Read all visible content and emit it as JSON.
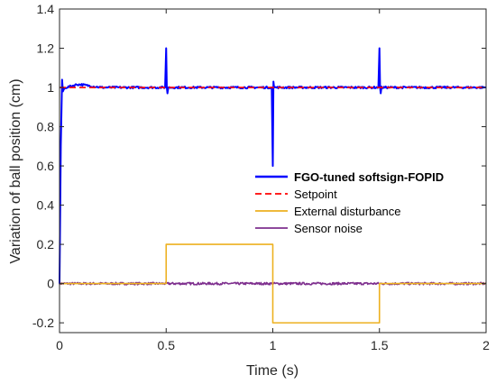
{
  "chart_data": {
    "type": "line",
    "xlabel": "Time (s)",
    "ylabel": "Variation of ball position (cm)",
    "xlim": [
      0,
      2
    ],
    "ylim": [
      -0.25,
      1.4
    ],
    "xticks": [
      0,
      0.5,
      1,
      1.5,
      2
    ],
    "xtick_labels": [
      "0",
      "0.5",
      "1",
      "1.5",
      "2"
    ],
    "yticks": [
      -0.2,
      0,
      0.2,
      0.4,
      0.6,
      0.8,
      1,
      1.2,
      1.4
    ],
    "ytick_labels": [
      "-0.2",
      "0",
      "0.2",
      "0.4",
      "0.6",
      "0.8",
      "1",
      "1.2",
      "1.4"
    ],
    "grid": false,
    "legend_position": "center-right",
    "series": [
      {
        "name": "FGO-tuned softsign-FOPID",
        "color": "#0000ff",
        "style": "solid",
        "legend_bold": true,
        "x": [
          0,
          0.006,
          0.012,
          0.016,
          0.02,
          0.03,
          0.05,
          0.08,
          0.1,
          0.13,
          0.16,
          0.2,
          0.3,
          0.4,
          0.495,
          0.5,
          0.503,
          0.506,
          0.51,
          0.6,
          0.7,
          0.8,
          0.9,
          0.995,
          1.0,
          1.003,
          1.006,
          1.01,
          1.1,
          1.2,
          1.3,
          1.4,
          1.495,
          1.5,
          1.503,
          1.506,
          1.51,
          1.6,
          1.7,
          1.8,
          1.9,
          2.0
        ],
        "y": [
          0,
          0.7,
          1.04,
          0.98,
          0.99,
          1.0,
          1.005,
          1.015,
          1.015,
          1.01,
          1.005,
          1.0,
          1.0,
          1.0,
          1.0,
          1.2,
          1.0,
          0.97,
          1.0,
          1.0,
          1.0,
          1.0,
          1.0,
          1.0,
          0.6,
          1.03,
          1.0,
          1.0,
          1.0,
          1.0,
          1.0,
          1.0,
          1.0,
          1.2,
          1.0,
          0.97,
          1.0,
          1.0,
          1.0,
          1.0,
          1.0,
          1.0
        ]
      },
      {
        "name": "Setpoint",
        "color": "#ff0000",
        "style": "dashed",
        "x": [
          0,
          2
        ],
        "y": [
          1,
          1
        ]
      },
      {
        "name": "External disturbance",
        "color": "#edb120",
        "style": "solid",
        "x": [
          0,
          0.5,
          0.5,
          1.0,
          1.0,
          1.5,
          1.5,
          2.0
        ],
        "y": [
          0,
          0,
          0.2,
          0.2,
          -0.2,
          -0.2,
          0,
          0
        ]
      },
      {
        "name": "Sensor noise",
        "color": "#7e2f8e",
        "style": "solid",
        "x": [
          0,
          2
        ],
        "y": [
          0,
          0
        ]
      }
    ]
  }
}
